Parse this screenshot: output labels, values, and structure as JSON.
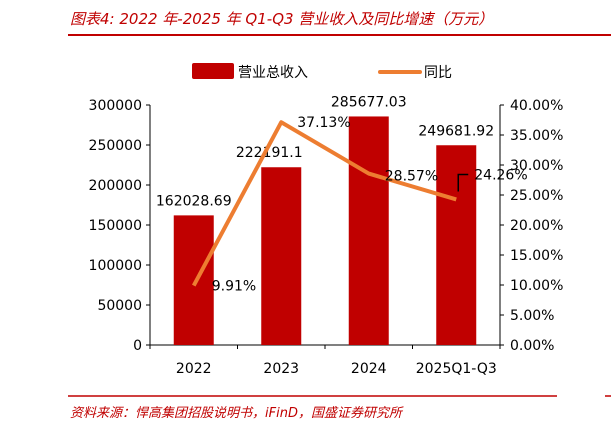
{
  "title": "图表4:  2022 年-2025 年 Q1-Q3 营业收入及同比增速（万元）",
  "source": "资料来源：悍高集团招股说明书，iFinD，国盛证券研究所",
  "colors": {
    "accent": "#c00000",
    "bar": "#c00000",
    "line": "#ed7d31"
  },
  "chart_data": {
    "type": "bar+line",
    "categories": [
      "2022",
      "2023",
      "2024",
      "2025Q1-Q3"
    ],
    "series": [
      {
        "name": "营业总收入",
        "type": "bar",
        "axis": "left",
        "values": [
          162028.69,
          222191.1,
          285677.03,
          249681.92
        ],
        "labels": [
          "162028.69",
          "222191.1",
          "285677.03",
          "249681.92"
        ]
      },
      {
        "name": "同比",
        "type": "line",
        "axis": "right",
        "values": [
          9.91,
          37.13,
          28.57,
          24.26
        ],
        "labels": [
          "9.91%",
          "37.13%",
          "28.57%",
          "24.26%"
        ]
      }
    ],
    "y_left": {
      "lim": [
        0,
        300000
      ],
      "ticks": [
        "0",
        "50000",
        "100000",
        "150000",
        "200000",
        "250000",
        "300000"
      ]
    },
    "y_right": {
      "lim": [
        0,
        40
      ],
      "ticks": [
        "0.00%",
        "5.00%",
        "10.00%",
        "15.00%",
        "20.00%",
        "25.00%",
        "30.00%",
        "35.00%",
        "40.00%"
      ]
    },
    "grid": false,
    "legend": "top"
  }
}
